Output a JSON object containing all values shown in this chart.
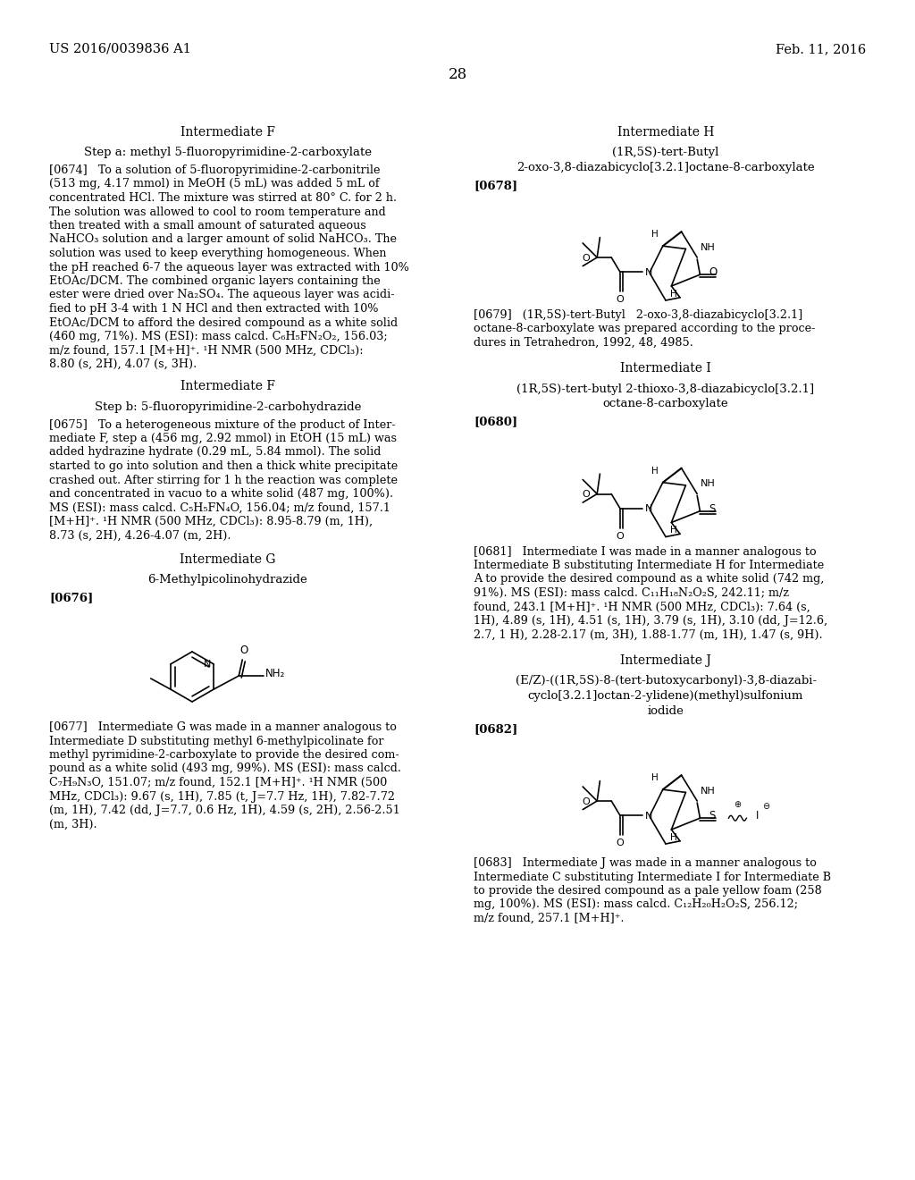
{
  "background_color": "#ffffff",
  "page_header_left": "US 2016/0039836 A1",
  "page_header_right": "Feb. 11, 2016",
  "page_number": "28"
}
